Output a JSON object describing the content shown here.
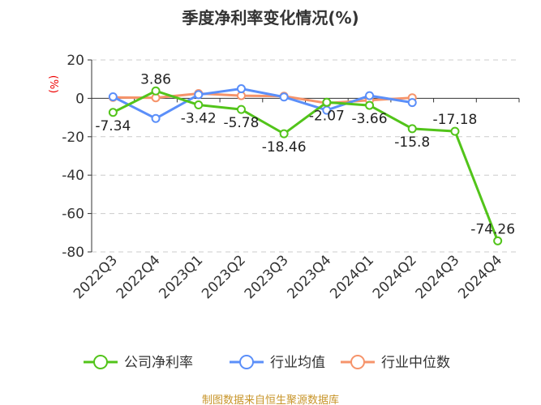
{
  "chart_data": {
    "type": "line",
    "title": "季度净利率变化情况(%)",
    "ylabel": "(%)",
    "categories": [
      "2022Q3",
      "2022Q4",
      "2023Q1",
      "2023Q2",
      "2023Q3",
      "2023Q4",
      "2024Q1",
      "2024Q2",
      "2024Q3",
      "2024Q4"
    ],
    "ylim": [
      -80,
      20
    ],
    "yticks": [
      20,
      0,
      -20,
      -40,
      -60,
      -80
    ],
    "grid": true,
    "legend_position": "bottom",
    "series": [
      {
        "name": "公司净利率",
        "color": "#52c41a",
        "values": [
          -7.34,
          3.86,
          -3.42,
          -5.78,
          -18.46,
          -2.07,
          -3.66,
          -15.8,
          -17.18,
          -74.26
        ],
        "labels": [
          "-7.34",
          "3.86",
          "-3.42",
          "-5.78",
          "-18.46",
          "-2.07",
          "-3.66",
          "-15.8",
          "-17.18",
          "-74.26"
        ]
      },
      {
        "name": "行业均值",
        "color": "#5b8ff9",
        "values": [
          0.8,
          -10.5,
          1.9,
          5.0,
          0.7,
          -6.2,
          1.4,
          -2.2,
          null,
          null
        ]
      },
      {
        "name": "行业中位数",
        "color": "#f6946b",
        "values": [
          0.5,
          0.3,
          2.5,
          1.4,
          1.1,
          -2.5,
          -1.0,
          0.3,
          null,
          null
        ]
      }
    ]
  },
  "source": "制图数据来自恒生聚源数据库"
}
